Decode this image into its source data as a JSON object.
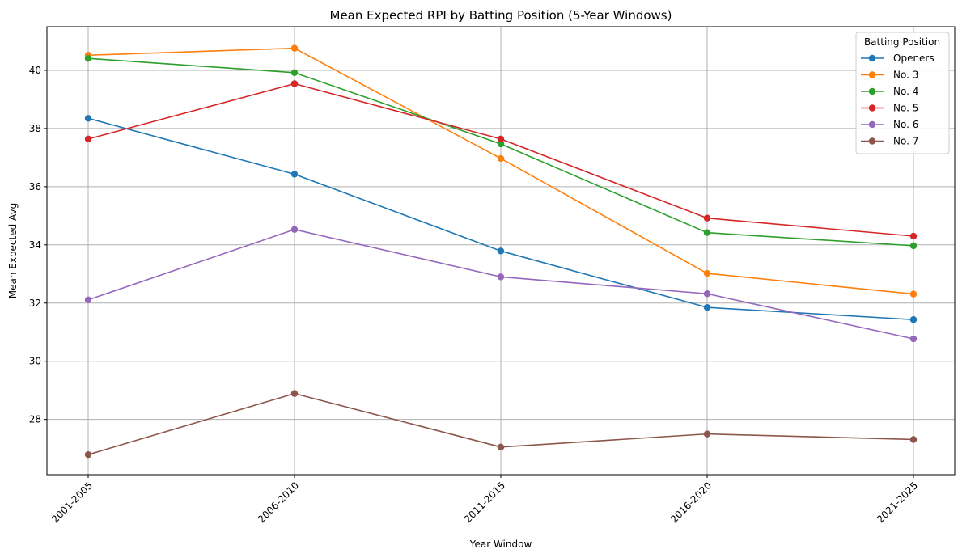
{
  "chart_data": {
    "type": "line",
    "title": "Mean Expected RPI by Batting Position (5-Year Windows)",
    "xlabel": "Year Window",
    "ylabel": "Mean Expected Avg",
    "categories": [
      "2001-2005",
      "2006-2010",
      "2011-2015",
      "2016-2020",
      "2021-2025"
    ],
    "ylim": [
      26.1,
      41.5
    ],
    "yticks": [
      28,
      30,
      32,
      34,
      36,
      38,
      40
    ],
    "grid": true,
    "legend": {
      "title": "Batting Position",
      "placement": "top-right"
    },
    "series": [
      {
        "name": "Openers",
        "color": "#1f77b4",
        "values": [
          38.35,
          36.43,
          33.79,
          31.85,
          31.43
        ]
      },
      {
        "name": "No. 3",
        "color": "#ff7f0e",
        "values": [
          40.52,
          40.76,
          36.97,
          33.02,
          32.31
        ]
      },
      {
        "name": "No. 4",
        "color": "#2ca02c",
        "values": [
          40.41,
          39.92,
          37.47,
          34.42,
          33.97
        ]
      },
      {
        "name": "No. 5",
        "color": "#d62728",
        "values": [
          37.64,
          39.54,
          37.64,
          34.92,
          34.3
        ]
      },
      {
        "name": "No. 6",
        "color": "#9467bd",
        "values": [
          32.11,
          34.53,
          32.9,
          32.32,
          30.77
        ]
      },
      {
        "name": "No. 7",
        "color": "#8c564b",
        "values": [
          26.79,
          28.89,
          27.05,
          27.5,
          27.31
        ]
      }
    ]
  }
}
